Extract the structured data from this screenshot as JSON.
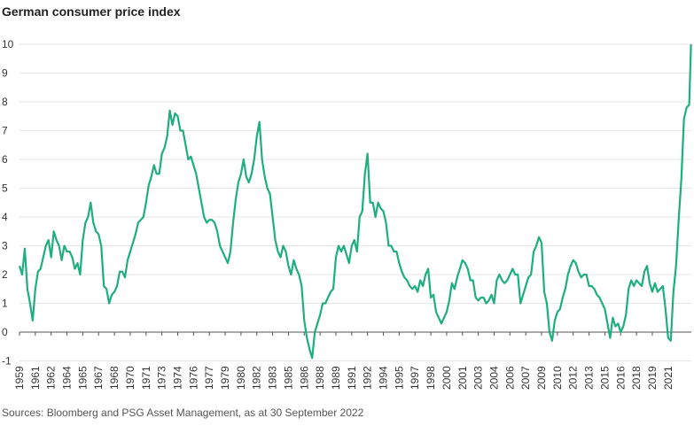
{
  "chart_data": {
    "type": "line",
    "title": "German consumer price index",
    "source": "Sources: Bloomberg and PSG Asset Management, as at 30 September 2022",
    "color": "#1fae7e",
    "grid": true,
    "ylim": [
      -1,
      10
    ],
    "yticks": [
      -1,
      0,
      1,
      2,
      3,
      4,
      5,
      6,
      7,
      8,
      9,
      10
    ],
    "xlim": [
      1959,
      2022.7
    ],
    "xticks": [
      1959,
      {
        "value": 1960.5,
        "label": "1961"
      },
      1962,
      {
        "value": 1963.5,
        "label": "1964"
      },
      1965,
      {
        "value": 1966.5,
        "label": "1967"
      },
      1968,
      {
        "value": 1969.5,
        "label": "1970"
      },
      1971,
      {
        "value": 1972.5,
        "label": "1973"
      },
      1974,
      {
        "value": 1975.5,
        "label": "1976"
      },
      1977,
      {
        "value": 1978.5,
        "label": "1979"
      },
      1980,
      {
        "value": 1981.5,
        "label": "1982"
      },
      1983,
      {
        "value": 1984.5,
        "label": "1985"
      },
      1986,
      {
        "value": 1987.5,
        "label": "1988"
      },
      1989,
      {
        "value": 1990.5,
        "label": "1991"
      },
      1992,
      {
        "value": 1993.5,
        "label": "1994"
      },
      1995,
      {
        "value": 1996.5,
        "label": "1997"
      },
      1998,
      {
        "value": 1999.5,
        "label": "2000"
      },
      2001,
      {
        "value": 2002.5,
        "label": "2003"
      },
      2004,
      {
        "value": 2005.5,
        "label": "2006"
      },
      2007,
      {
        "value": 2008.5,
        "label": "2009"
      },
      2010,
      {
        "value": 2011.5,
        "label": "2012"
      },
      2013,
      {
        "value": 2014.5,
        "label": "2015"
      },
      2016,
      {
        "value": 2017.5,
        "label": "2018"
      },
      2019,
      {
        "value": 2020.5,
        "label": "2021"
      }
    ],
    "x": [
      1959,
      1959.25,
      1959.5,
      1959.75,
      1960,
      1960.25,
      1960.5,
      1960.75,
      1961,
      1961.25,
      1961.5,
      1961.75,
      1962,
      1962.25,
      1962.5,
      1962.75,
      1963,
      1963.25,
      1963.5,
      1963.75,
      1964,
      1964.25,
      1964.5,
      1964.75,
      1965,
      1965.25,
      1965.5,
      1965.75,
      1966,
      1966.25,
      1966.5,
      1966.75,
      1967,
      1967.25,
      1967.5,
      1967.75,
      1968,
      1968.25,
      1968.5,
      1968.75,
      1969,
      1969.25,
      1969.5,
      1969.75,
      1970,
      1970.25,
      1970.5,
      1970.75,
      1971,
      1971.25,
      1971.5,
      1971.75,
      1972,
      1972.25,
      1972.5,
      1972.75,
      1973,
      1973.25,
      1973.5,
      1973.75,
      1974,
      1974.25,
      1974.5,
      1974.75,
      1975,
      1975.25,
      1975.5,
      1975.75,
      1976,
      1976.25,
      1976.5,
      1976.75,
      1977,
      1977.25,
      1977.5,
      1977.75,
      1978,
      1978.25,
      1978.5,
      1978.75,
      1979,
      1979.25,
      1979.5,
      1979.75,
      1980,
      1980.25,
      1980.5,
      1980.75,
      1981,
      1981.25,
      1981.5,
      1981.75,
      1982,
      1982.25,
      1982.5,
      1982.75,
      1983,
      1983.25,
      1983.5,
      1983.75,
      1984,
      1984.25,
      1984.5,
      1984.75,
      1985,
      1985.25,
      1985.5,
      1985.75,
      1986,
      1986.25,
      1986.5,
      1986.75,
      1987,
      1987.25,
      1987.5,
      1987.75,
      1988,
      1988.25,
      1988.5,
      1988.75,
      1989,
      1989.25,
      1989.5,
      1989.75,
      1990,
      1990.25,
      1990.5,
      1990.75,
      1991,
      1991.25,
      1991.5,
      1991.75,
      1992,
      1992.25,
      1992.5,
      1992.75,
      1993,
      1993.25,
      1993.5,
      1993.75,
      1994,
      1994.25,
      1994.5,
      1994.75,
      1995,
      1995.25,
      1995.5,
      1995.75,
      1996,
      1996.25,
      1996.5,
      1996.75,
      1997,
      1997.25,
      1997.5,
      1997.75,
      1998,
      1998.25,
      1998.5,
      1998.75,
      1999,
      1999.25,
      1999.5,
      1999.75,
      2000,
      2000.25,
      2000.5,
      2000.75,
      2001,
      2001.25,
      2001.5,
      2001.75,
      2002,
      2002.25,
      2002.5,
      2002.75,
      2003,
      2003.25,
      2003.5,
      2003.75,
      2004,
      2004.25,
      2004.5,
      2004.75,
      2005,
      2005.25,
      2005.5,
      2005.75,
      2006,
      2006.25,
      2006.5,
      2006.75,
      2007,
      2007.25,
      2007.5,
      2007.75,
      2008,
      2008.25,
      2008.5,
      2008.75,
      2009,
      2009.25,
      2009.5,
      2009.75,
      2010,
      2010.25,
      2010.5,
      2010.75,
      2011,
      2011.25,
      2011.5,
      2011.75,
      2012,
      2012.25,
      2012.5,
      2012.75,
      2013,
      2013.25,
      2013.5,
      2013.75,
      2014,
      2014.25,
      2014.5,
      2014.75,
      2015,
      2015.25,
      2015.5,
      2015.75,
      2016,
      2016.25,
      2016.5,
      2016.75,
      2017,
      2017.25,
      2017.5,
      2017.75,
      2018,
      2018.25,
      2018.5,
      2018.75,
      2019,
      2019.25,
      2019.5,
      2019.75,
      2020,
      2020.25,
      2020.5,
      2020.75,
      2021,
      2021.25,
      2021.5,
      2021.75,
      2022,
      2022.25,
      2022.5,
      2022.67
    ],
    "values": [
      2.3,
      2.0,
      2.9,
      1.5,
      1.0,
      0.4,
      1.5,
      2.1,
      2.2,
      2.6,
      3.0,
      3.2,
      2.6,
      3.5,
      3.2,
      3.0,
      2.5,
      3.0,
      2.8,
      2.8,
      2.6,
      2.2,
      2.4,
      2.0,
      3.2,
      3.8,
      4.0,
      4.5,
      3.8,
      3.5,
      3.4,
      3.0,
      1.6,
      1.5,
      1.0,
      1.3,
      1.4,
      1.6,
      2.1,
      2.1,
      1.9,
      2.5,
      2.8,
      3.1,
      3.4,
      3.8,
      3.9,
      4.0,
      4.5,
      5.1,
      5.4,
      5.8,
      5.5,
      5.5,
      6.2,
      6.4,
      6.8,
      7.7,
      7.2,
      7.6,
      7.5,
      7.0,
      7.0,
      6.5,
      6.0,
      6.1,
      5.8,
      5.5,
      5.0,
      4.5,
      4.0,
      3.8,
      3.9,
      3.9,
      3.8,
      3.5,
      3.0,
      2.8,
      2.6,
      2.4,
      2.8,
      3.8,
      4.6,
      5.2,
      5.5,
      6.0,
      5.4,
      5.2,
      5.5,
      6.0,
      6.8,
      7.3,
      6.0,
      5.4,
      5.0,
      4.8,
      4.0,
      3.2,
      2.8,
      2.6,
      3.0,
      2.8,
      2.3,
      2.0,
      2.5,
      2.2,
      2.0,
      1.6,
      0.4,
      -0.2,
      -0.6,
      -0.9,
      0.0,
      0.3,
      0.6,
      1.0,
      1.0,
      1.2,
      1.4,
      1.5,
      2.6,
      3.0,
      2.8,
      3.0,
      2.7,
      2.4,
      3.0,
      3.2,
      2.8,
      4.0,
      4.2,
      5.5,
      6.2,
      4.5,
      4.5,
      4.0,
      4.5,
      4.3,
      4.2,
      3.8,
      3.0,
      3.0,
      2.8,
      2.8,
      2.4,
      2.1,
      1.9,
      1.8,
      1.6,
      1.5,
      1.6,
      1.4,
      1.8,
      1.6,
      2.0,
      2.2,
      1.2,
      1.3,
      0.7,
      0.5,
      0.3,
      0.5,
      0.7,
      1.1,
      1.7,
      1.5,
      1.9,
      2.2,
      2.5,
      2.4,
      2.2,
      1.8,
      1.8,
      1.2,
      1.1,
      1.2,
      1.2,
      1.0,
      1.1,
      1.3,
      1.0,
      1.8,
      2.0,
      1.8,
      1.7,
      1.8,
      2.0,
      2.2,
      2.0,
      2.0,
      1.0,
      1.3,
      1.6,
      1.9,
      2.0,
      2.8,
      3.0,
      3.3,
      3.1,
      1.4,
      1.0,
      0.0,
      -0.3,
      0.4,
      0.7,
      0.8,
      1.2,
      1.5,
      2.0,
      2.3,
      2.5,
      2.4,
      2.1,
      1.9,
      2.0,
      2.0,
      1.6,
      1.6,
      1.5,
      1.3,
      1.2,
      1.0,
      0.8,
      0.3,
      -0.2,
      0.5,
      0.2,
      0.3,
      0.0,
      0.2,
      0.6,
      1.5,
      1.8,
      1.6,
      1.8,
      1.7,
      1.6,
      2.1,
      2.3,
      1.7,
      1.4,
      1.7,
      1.4,
      1.5,
      1.6,
      0.8,
      -0.2,
      -0.3,
      1.4,
      2.3,
      3.9,
      5.3,
      7.4,
      7.8,
      7.9,
      10.0
    ]
  }
}
